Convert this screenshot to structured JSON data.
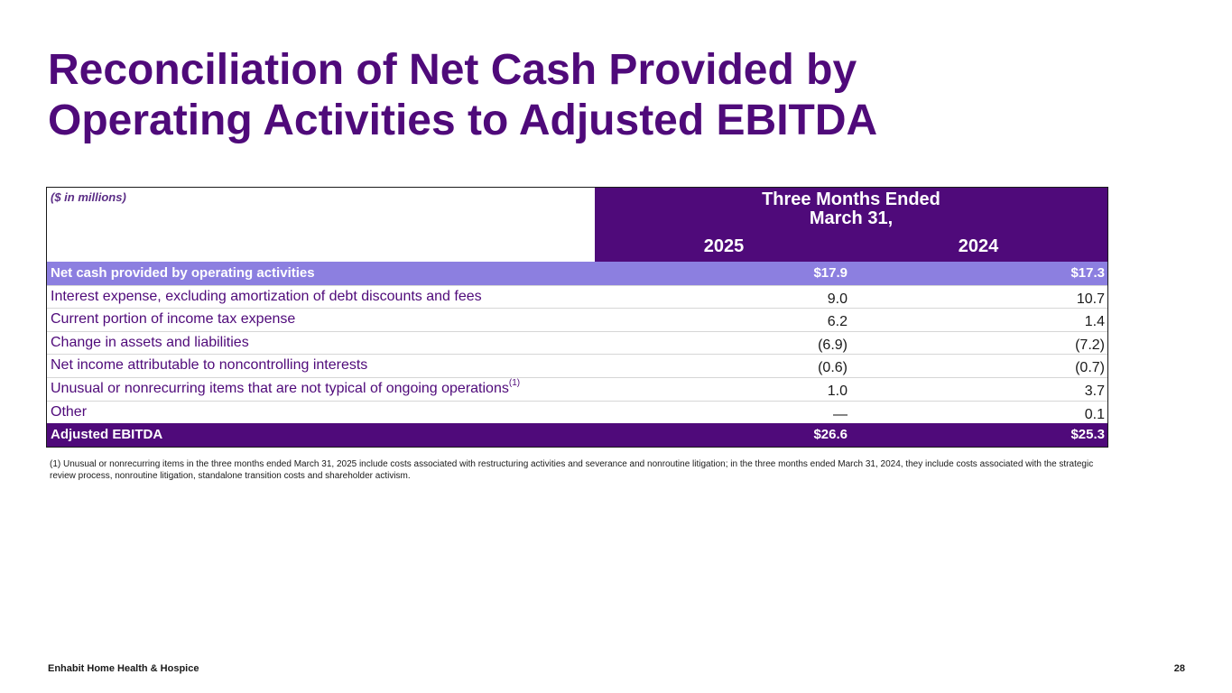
{
  "title": {
    "line1": "Reconciliation of Net Cash Provided by",
    "line2": "Operating Activities to Adjusted EBITDA"
  },
  "table": {
    "units": "($ in millions)",
    "period_line1": "Three Months Ended",
    "period_line2": "March 31,",
    "years": [
      "2025",
      "2024"
    ],
    "rows": [
      {
        "label": "Net cash provided by operating activities",
        "v2025": "$17.9",
        "v2024": "$17.3"
      },
      {
        "label": "Interest expense, excluding amortization of debt discounts and fees",
        "v2025": "9.0",
        "v2024": "10.7"
      },
      {
        "label": "Current portion of income tax expense",
        "v2025": "6.2",
        "v2024": "1.4"
      },
      {
        "label": "Change in assets and liabilities",
        "v2025": "(6.9)",
        "v2024": "(7.2)"
      },
      {
        "label": "Net income attributable to noncontrolling interests",
        "v2025": "(0.6)",
        "v2024": "(0.7)"
      },
      {
        "label": "Unusual or nonrecurring items that are not typical of ongoing operations",
        "footnote_ref": "(1)",
        "v2025": "1.0",
        "v2024": "3.7"
      },
      {
        "label": "Other",
        "v2025": "—",
        "v2024": "0.1"
      },
      {
        "label": "Adjusted EBITDA",
        "v2025": "$26.6",
        "v2024": "$25.3"
      }
    ]
  },
  "footnote": "(1) Unusual or nonrecurring items in the three months ended March 31, 2025 include costs associated with restructuring activities and severance and nonroutine litigation; in the three months ended March 31, 2024, they include costs associated with the strategic review process, nonroutine litigation, standalone transition costs and shareholder activism.",
  "footer": {
    "company": "Enhabit Home Health & Hospice",
    "page_number": "28"
  },
  "colors": {
    "brand_purple": "#4f0a7a",
    "highlight_lavender": "#8c7fe0"
  }
}
